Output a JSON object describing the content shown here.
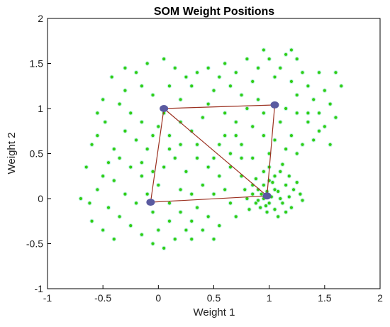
{
  "chart_data": {
    "type": "scatter",
    "title": "SOM Weight Positions",
    "xlabel": "Weight 1",
    "ylabel": "Weight 2",
    "xlim": [
      -1,
      2
    ],
    "ylim": [
      -1,
      2
    ],
    "xticks": [
      "-1",
      "-0.5",
      "0",
      "0.5",
      "1",
      "1.5",
      "2"
    ],
    "yticks": [
      "-1",
      "-0.5",
      "0",
      "0.5",
      "1",
      "1.5",
      "2"
    ],
    "grid": false,
    "series": [
      {
        "role": "input-data",
        "color": "#33cc11",
        "halo_color": "#bff5e6",
        "points": [
          [
            -0.62,
            -0.05
          ],
          [
            -0.55,
            0.1
          ],
          [
            -0.5,
            0.25
          ],
          [
            -0.45,
            0.4
          ],
          [
            -0.4,
            0.55
          ],
          [
            -0.55,
            0.7
          ],
          [
            -0.48,
            0.85
          ],
          [
            -0.35,
            1.05
          ],
          [
            -0.3,
            1.2
          ],
          [
            -0.42,
            1.35
          ],
          [
            -0.2,
            1.4
          ],
          [
            -0.1,
            1.5
          ],
          [
            0.05,
            1.55
          ],
          [
            0.15,
            1.45
          ],
          [
            0.25,
            1.35
          ],
          [
            -0.15,
            1.25
          ],
          [
            -0.05,
            1.15
          ],
          [
            0.1,
            1.25
          ],
          [
            0.2,
            1.1
          ],
          [
            0.3,
            1.25
          ],
          [
            -0.25,
            0.95
          ],
          [
            -0.15,
            0.85
          ],
          [
            -0.3,
            0.75
          ],
          [
            -0.2,
            0.65
          ],
          [
            -0.1,
            0.55
          ],
          [
            -0.35,
            0.45
          ],
          [
            -0.25,
            0.35
          ],
          [
            -0.15,
            0.25
          ],
          [
            -0.4,
            0.2
          ],
          [
            -0.3,
            0.05
          ],
          [
            -0.2,
            -0.05
          ],
          [
            -0.35,
            -0.2
          ],
          [
            -0.25,
            -0.3
          ],
          [
            -0.15,
            -0.4
          ],
          [
            -0.05,
            -0.5
          ],
          [
            0.05,
            -0.55
          ],
          [
            0.15,
            -0.45
          ],
          [
            0.25,
            -0.35
          ],
          [
            0.1,
            -0.25
          ],
          [
            -0.45,
            -0.1
          ],
          [
            0.0,
            0.8
          ],
          [
            0.1,
            0.7
          ],
          [
            0.2,
            0.6
          ],
          [
            0.15,
            0.45
          ],
          [
            0.05,
            0.35
          ],
          [
            0.25,
            0.3
          ],
          [
            0.35,
            0.45
          ],
          [
            0.3,
            0.75
          ],
          [
            0.4,
            0.9
          ],
          [
            0.45,
            1.05
          ],
          [
            0.5,
            1.2
          ],
          [
            0.55,
            1.35
          ],
          [
            0.45,
            1.45
          ],
          [
            0.6,
            1.5
          ],
          [
            0.7,
            1.4
          ],
          [
            0.65,
            1.25
          ],
          [
            0.75,
            1.15
          ],
          [
            0.85,
            1.3
          ],
          [
            0.9,
            1.45
          ],
          [
            0.8,
            1.55
          ],
          [
            1.0,
            1.55
          ],
          [
            1.1,
            1.45
          ],
          [
            1.15,
            1.6
          ],
          [
            1.05,
            1.35
          ],
          [
            1.2,
            1.3
          ],
          [
            1.3,
            1.4
          ],
          [
            1.35,
            1.25
          ],
          [
            1.25,
            1.15
          ],
          [
            1.4,
            1.1
          ],
          [
            1.5,
            1.2
          ],
          [
            1.55,
            1.05
          ],
          [
            1.45,
            0.95
          ],
          [
            1.6,
            0.9
          ],
          [
            1.5,
            0.8
          ],
          [
            1.35,
            0.85
          ],
          [
            1.25,
            0.95
          ],
          [
            1.15,
            1.0
          ],
          [
            1.1,
            0.85
          ],
          [
            1.2,
            0.7
          ],
          [
            1.3,
            0.6
          ],
          [
            1.4,
            0.65
          ],
          [
            1.25,
            0.5
          ],
          [
            1.15,
            0.55
          ],
          [
            0.95,
            0.7
          ],
          [
            0.85,
            0.8
          ],
          [
            0.7,
            0.85
          ],
          [
            0.6,
            0.7
          ],
          [
            0.75,
            0.6
          ],
          [
            0.65,
            0.5
          ],
          [
            0.55,
            0.6
          ],
          [
            0.5,
            0.45
          ],
          [
            0.45,
            0.35
          ],
          [
            0.55,
            0.25
          ],
          [
            0.65,
            0.35
          ],
          [
            0.75,
            0.25
          ],
          [
            0.6,
            0.1
          ],
          [
            0.5,
            0.05
          ],
          [
            0.4,
            0.15
          ],
          [
            0.3,
            0.05
          ],
          [
            0.35,
            -0.1
          ],
          [
            0.45,
            -0.2
          ],
          [
            0.55,
            -0.3
          ],
          [
            0.4,
            -0.35
          ],
          [
            0.3,
            -0.25
          ],
          [
            0.2,
            -0.15
          ],
          [
            0.1,
            -0.05
          ],
          [
            0.2,
            0.1
          ],
          [
            0.0,
            0.15
          ],
          [
            -0.1,
            0.05
          ],
          [
            -0.05,
            -0.15
          ],
          [
            0.85,
            0.05
          ],
          [
            0.9,
            0.1
          ],
          [
            0.95,
            0.15
          ],
          [
            1.0,
            0.2
          ],
          [
            1.05,
            0.25
          ],
          [
            1.1,
            0.3
          ],
          [
            0.88,
            -0.05
          ],
          [
            0.92,
            -0.1
          ],
          [
            0.98,
            -0.15
          ],
          [
            1.05,
            -0.12
          ],
          [
            1.12,
            -0.05
          ],
          [
            1.18,
            0.02
          ],
          [
            1.22,
            0.1
          ],
          [
            1.25,
            0.18
          ],
          [
            1.15,
            0.15
          ],
          [
            1.08,
            0.08
          ],
          [
            1.02,
            0.02
          ],
          [
            0.95,
            0.0
          ],
          [
            0.9,
            -0.02
          ],
          [
            1.0,
            -0.05
          ],
          [
            1.1,
            0.0
          ],
          [
            1.05,
            0.1
          ],
          [
            0.98,
            0.08
          ],
          [
            0.93,
            0.05
          ],
          [
            1.2,
            -0.1
          ],
          [
            1.15,
            -0.15
          ],
          [
            1.08,
            -0.2
          ],
          [
            0.8,
            0.0
          ],
          [
            0.82,
            -0.12
          ],
          [
            0.85,
            0.15
          ],
          [
            1.28,
            0.05
          ],
          [
            1.3,
            -0.02
          ],
          [
            1.0,
            0.35
          ],
          [
            0.95,
            0.3
          ],
          [
            1.12,
            0.38
          ],
          [
            0.78,
            0.1
          ],
          [
            0.88,
            0.22
          ],
          [
            1.18,
            0.25
          ],
          [
            1.03,
            0.18
          ],
          [
            0.97,
            -0.08
          ],
          [
            1.65,
            1.25
          ],
          [
            1.6,
            1.4
          ],
          [
            1.45,
            1.4
          ],
          [
            1.25,
            1.55
          ],
          [
            1.2,
            1.65
          ],
          [
            0.95,
            1.65
          ],
          [
            -0.5,
            1.1
          ],
          [
            -0.55,
            0.95
          ],
          [
            -0.6,
            0.6
          ],
          [
            -0.65,
            0.35
          ],
          [
            -0.7,
            0.0
          ],
          [
            -0.6,
            -0.25
          ],
          [
            -0.5,
            -0.35
          ],
          [
            -0.4,
            -0.45
          ],
          [
            0.0,
            -0.35
          ],
          [
            0.3,
            -0.45
          ],
          [
            0.5,
            -0.45
          ],
          [
            0.7,
            -0.2
          ],
          [
            0.65,
            -0.05
          ],
          [
            0.75,
            0.45
          ],
          [
            0.35,
            0.6
          ],
          [
            0.2,
            0.85
          ],
          [
            0.05,
            0.95
          ],
          [
            -0.05,
            0.7
          ],
          [
            -0.15,
            0.4
          ],
          [
            -0.05,
            0.3
          ],
          [
            0.1,
            0.55
          ],
          [
            0.6,
            0.95
          ],
          [
            0.8,
            1.0
          ],
          [
            0.95,
            0.95
          ],
          [
            1.05,
            0.65
          ],
          [
            1.0,
            0.5
          ],
          [
            0.85,
            0.45
          ],
          [
            0.7,
            0.7
          ],
          [
            1.35,
            0.95
          ],
          [
            1.45,
            0.75
          ],
          [
            1.55,
            0.6
          ],
          [
            0.9,
            1.1
          ],
          [
            0.35,
            1.4
          ],
          [
            -0.3,
            1.45
          ]
        ]
      },
      {
        "role": "som-neurons",
        "color": "#5a5aa0",
        "edge_color": "#9b3020",
        "points": [
          [
            0.05,
            1.0
          ],
          [
            1.05,
            1.04
          ],
          [
            -0.07,
            -0.04
          ],
          [
            0.98,
            0.03
          ]
        ],
        "edges": [
          [
            0,
            1
          ],
          [
            0,
            2
          ],
          [
            1,
            3
          ],
          [
            2,
            3
          ],
          [
            0,
            3
          ]
        ]
      }
    ]
  }
}
